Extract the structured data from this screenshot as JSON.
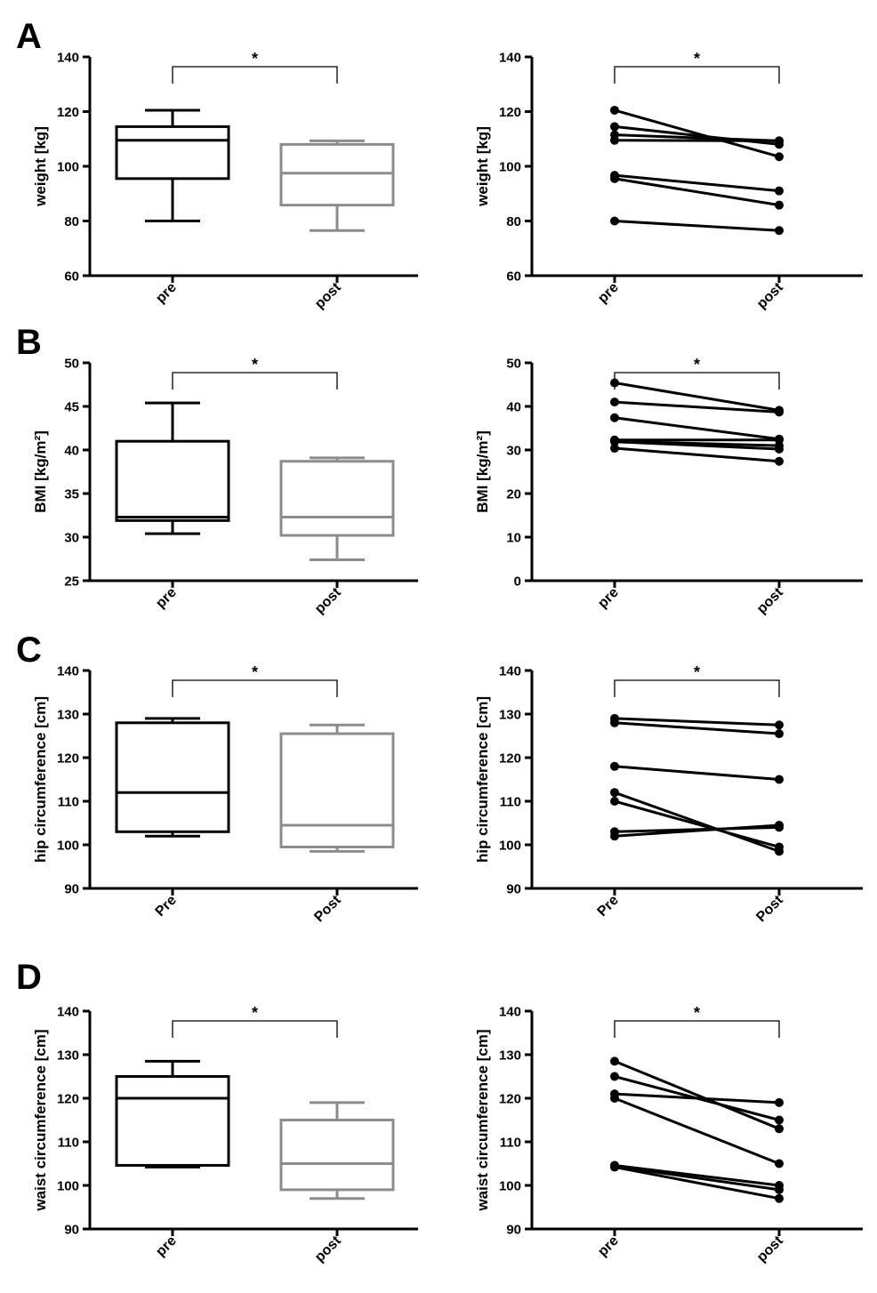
{
  "panels": [
    {
      "letter": "A"
    },
    {
      "letter": "B"
    },
    {
      "letter": "C"
    },
    {
      "letter": "D"
    }
  ],
  "colors": {
    "pre": "#000000",
    "post": "#8c8c8c",
    "lines": "#000000"
  },
  "chart_data": [
    {
      "type": "box",
      "panel": "A",
      "ylabel": "weight [kg]",
      "ylim": [
        60,
        140
      ],
      "yticks": [
        60,
        80,
        100,
        120,
        140
      ],
      "categories": [
        "pre",
        "post"
      ],
      "boxes": [
        {
          "name": "pre",
          "min": 80,
          "q1": 95.5,
          "median": 109.5,
          "q3": 114.5,
          "max": 120.5
        },
        {
          "name": "post",
          "min": 76.5,
          "q1": 85.8,
          "median": 97.5,
          "q3": 108,
          "max": 109.3
        }
      ],
      "significance": "*"
    },
    {
      "type": "line",
      "panel": "A",
      "ylabel": "weight [kg]",
      "ylim": [
        60,
        140
      ],
      "yticks": [
        60,
        80,
        100,
        120,
        140
      ],
      "categories": [
        "pre",
        "post"
      ],
      "subjects": [
        [
          120.5,
          103.5
        ],
        [
          114.5,
          108
        ],
        [
          111.5,
          109.3
        ],
        [
          109.5,
          109.3
        ],
        [
          96.7,
          91
        ],
        [
          95.5,
          85.8
        ],
        [
          80,
          76.5
        ]
      ],
      "significance": "*"
    },
    {
      "type": "box",
      "panel": "B",
      "ylabel": "BMI [kg/m²]",
      "ylim": [
        25,
        50
      ],
      "yticks": [
        25,
        30,
        35,
        40,
        45,
        50
      ],
      "categories": [
        "pre",
        "post"
      ],
      "boxes": [
        {
          "name": "pre",
          "min": 30.4,
          "q1": 31.9,
          "median": 32.3,
          "q3": 41,
          "max": 45.4
        },
        {
          "name": "post",
          "min": 27.4,
          "q1": 30.2,
          "median": 32.3,
          "q3": 38.7,
          "max": 39.1
        }
      ],
      "significance": "*"
    },
    {
      "type": "line",
      "panel": "B",
      "ylabel": "BMI [kg/m²]",
      "ylim": [
        0,
        50
      ],
      "yticks": [
        0,
        10,
        20,
        30,
        40,
        50
      ],
      "categories": [
        "pre",
        "post"
      ],
      "subjects": [
        [
          45.4,
          39.1
        ],
        [
          41,
          38.7
        ],
        [
          37.4,
          32.5
        ],
        [
          32.3,
          32.3
        ],
        [
          32,
          31
        ],
        [
          31.9,
          30.2
        ],
        [
          30.4,
          27.4
        ]
      ],
      "significance": "*"
    },
    {
      "type": "box",
      "panel": "C",
      "ylabel": "hip circumference [cm]",
      "ylim": [
        90,
        140
      ],
      "yticks": [
        90,
        100,
        110,
        120,
        130,
        140
      ],
      "categories": [
        "Pre",
        "Post"
      ],
      "boxes": [
        {
          "name": "Pre",
          "min": 102,
          "q1": 103,
          "median": 112,
          "q3": 128,
          "max": 129
        },
        {
          "name": "Post",
          "min": 98.5,
          "q1": 99.5,
          "median": 104.5,
          "q3": 125.5,
          "max": 127.5
        }
      ],
      "significance": "*"
    },
    {
      "type": "line",
      "panel": "C",
      "ylabel": "hip circumference [cm]",
      "ylim": [
        90,
        140
      ],
      "yticks": [
        90,
        100,
        110,
        120,
        130,
        140
      ],
      "categories": [
        "Pre",
        "Post"
      ],
      "subjects": [
        [
          129,
          127.5
        ],
        [
          128,
          125.5
        ],
        [
          118,
          115
        ],
        [
          112,
          98.5
        ],
        [
          110,
          99.5
        ],
        [
          103,
          104
        ],
        [
          102,
          104.5
        ]
      ],
      "significance": "*"
    },
    {
      "type": "box",
      "panel": "D",
      "ylabel": "waist circumference [cm]",
      "ylim": [
        90,
        140
      ],
      "yticks": [
        90,
        100,
        110,
        120,
        130,
        140
      ],
      "categories": [
        "pre",
        "post"
      ],
      "boxes": [
        {
          "name": "pre",
          "min": 104.2,
          "q1": 104.6,
          "median": 120,
          "q3": 125,
          "max": 128.5
        },
        {
          "name": "post",
          "min": 97,
          "q1": 99,
          "median": 105,
          "q3": 115,
          "max": 119
        }
      ],
      "significance": "*"
    },
    {
      "type": "line",
      "panel": "D",
      "ylabel": "waist circumference [cm]",
      "ylim": [
        90,
        140
      ],
      "yticks": [
        90,
        100,
        110,
        120,
        130,
        140
      ],
      "categories": [
        "pre",
        "post"
      ],
      "subjects": [
        [
          128.5,
          113
        ],
        [
          125,
          115
        ],
        [
          121,
          119
        ],
        [
          120,
          105
        ],
        [
          104.6,
          100
        ],
        [
          104.4,
          99
        ],
        [
          104.2,
          97
        ]
      ],
      "significance": "*"
    }
  ]
}
